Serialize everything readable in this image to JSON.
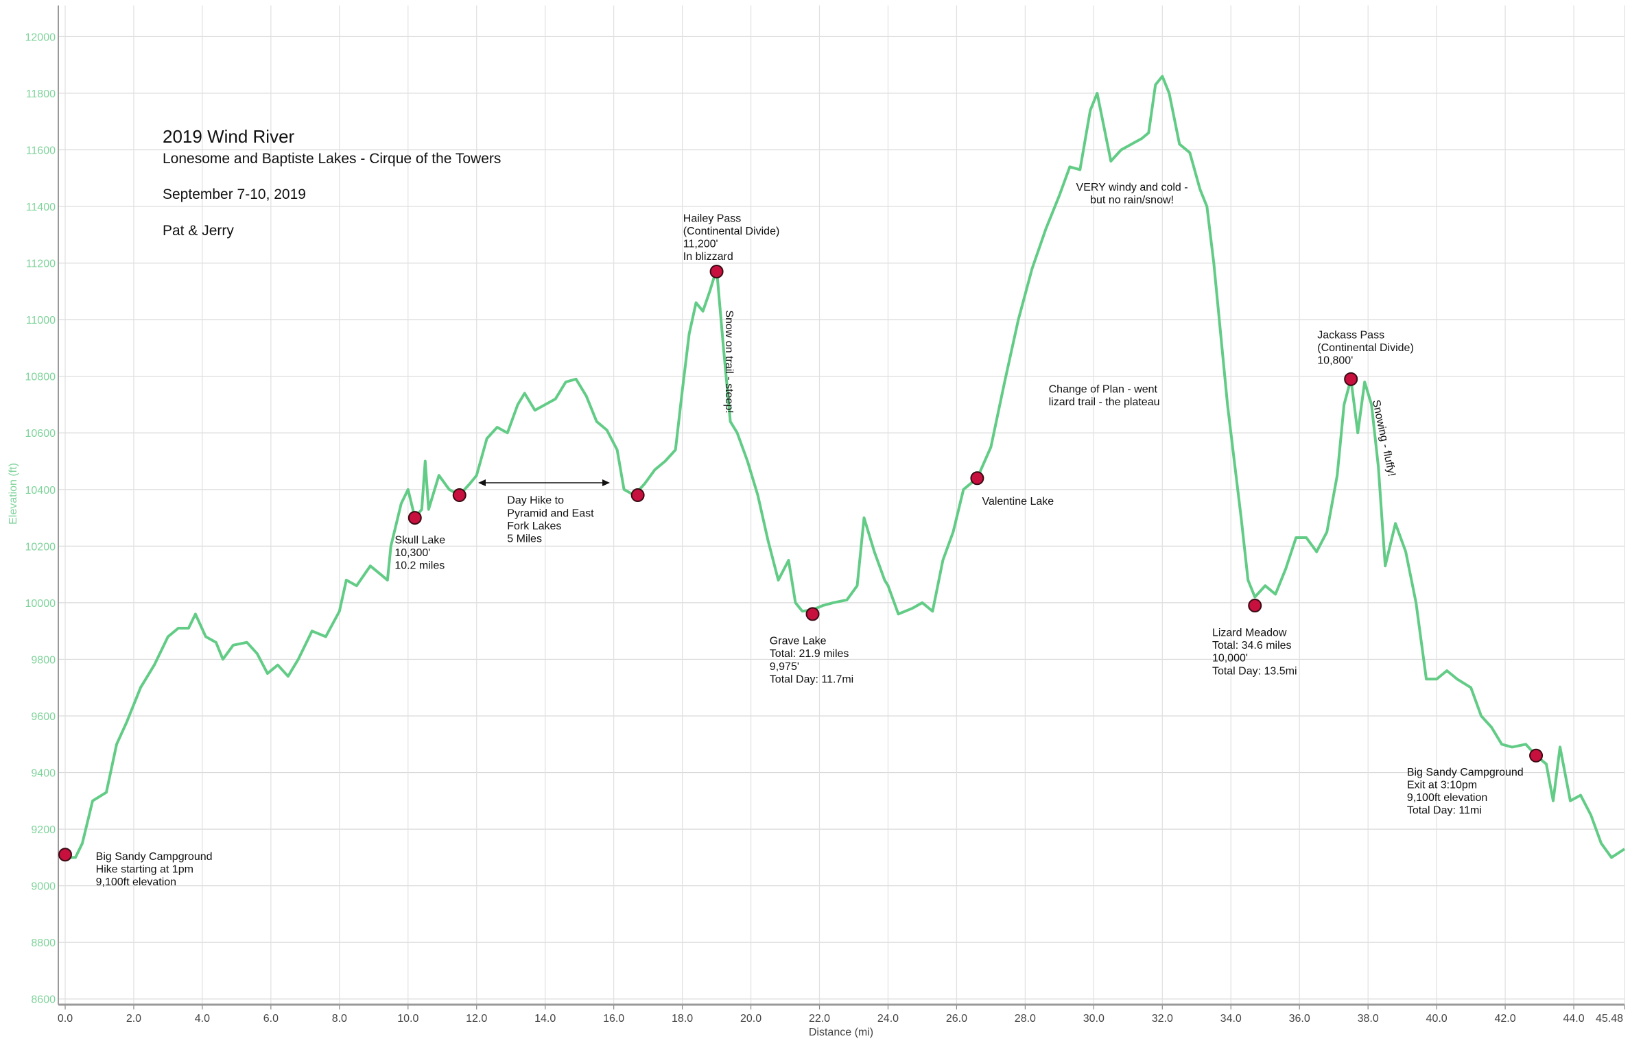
{
  "chart_data": {
    "type": "line",
    "title": "2019 Wind River",
    "subtitle": "Lonesome and Baptiste Lakes - Cirque of the Towers",
    "date": "September 7-10, 2019",
    "authors": "Pat & Jerry",
    "x_label": "Distance (mi)",
    "y_label": "Elevation (ft)",
    "color": "#62cc86",
    "grid": true,
    "xlim": [
      -0.2,
      45.48
    ],
    "ylim": [
      8580,
      12110
    ],
    "xticks": [
      {
        "value": 0,
        "label": "0.0"
      },
      {
        "value": 2,
        "label": "2.0"
      },
      {
        "value": 4,
        "label": "4.0"
      },
      {
        "value": 6,
        "label": "6.0"
      },
      {
        "value": 8,
        "label": "8.0"
      },
      {
        "value": 10,
        "label": "10.0"
      },
      {
        "value": 12,
        "label": "12.0"
      },
      {
        "value": 14,
        "label": "14.0"
      },
      {
        "value": 16,
        "label": "16.0"
      },
      {
        "value": 18,
        "label": "18.0"
      },
      {
        "value": 20,
        "label": "20.0"
      },
      {
        "value": 22,
        "label": "22.0"
      },
      {
        "value": 24,
        "label": "24.0"
      },
      {
        "value": 26,
        "label": "26.0"
      },
      {
        "value": 28,
        "label": "28.0"
      },
      {
        "value": 30,
        "label": "30.0"
      },
      {
        "value": 32,
        "label": "32.0"
      },
      {
        "value": 34,
        "label": "34.0"
      },
      {
        "value": 36,
        "label": "36.0"
      },
      {
        "value": 38,
        "label": "38.0"
      },
      {
        "value": 40,
        "label": "40.0"
      },
      {
        "value": 42,
        "label": "42.0"
      },
      {
        "value": 44,
        "label": "44.0"
      },
      45.48
    ],
    "yticks": [
      8600,
      8800,
      9000,
      9200,
      9400,
      9600,
      9800,
      10000,
      10200,
      10400,
      10600,
      10800,
      11000,
      11200,
      11400,
      11600,
      11800,
      12000
    ],
    "x": [
      0,
      0.3,
      0.5,
      0.8,
      1.2,
      1.5,
      1.8,
      2.2,
      2.6,
      3.0,
      3.3,
      3.6,
      3.8,
      4.1,
      4.4,
      4.6,
      4.9,
      5.3,
      5.6,
      5.9,
      6.2,
      6.5,
      6.8,
      7.2,
      7.6,
      8.0,
      8.2,
      8.5,
      8.9,
      9.2,
      9.4,
      9.5,
      9.8,
      10.0,
      10.2,
      10.4,
      10.5,
      10.6,
      10.9,
      11.2,
      11.5,
      11.8,
      12.0,
      12.3,
      12.6,
      12.9,
      13.2,
      13.4,
      13.7,
      14.0,
      14.3,
      14.6,
      14.9,
      15.2,
      15.5,
      15.8,
      16.1,
      16.3,
      16.6,
      16.9,
      17.2,
      17.5,
      17.8,
      18.0,
      18.2,
      18.4,
      18.6,
      18.8,
      19.0,
      19.2,
      19.4,
      19.6,
      19.9,
      20.2,
      20.5,
      20.8,
      21.1,
      21.3,
      21.5,
      21.8,
      22.1,
      22.4,
      22.8,
      23.1,
      23.3,
      23.6,
      23.9,
      24.0,
      24.3,
      24.7,
      25.0,
      25.3,
      25.6,
      25.9,
      26.2,
      26.6,
      27.0,
      27.4,
      27.8,
      28.2,
      28.6,
      29.0,
      29.3,
      29.6,
      29.9,
      30.1,
      30.3,
      30.5,
      30.8,
      31.1,
      31.4,
      31.6,
      31.8,
      32.0,
      32.2,
      32.5,
      32.8,
      33.1,
      33.3,
      33.5,
      33.7,
      33.9,
      34.1,
      34.3,
      34.5,
      34.7,
      35.0,
      35.3,
      35.6,
      35.9,
      36.2,
      36.5,
      36.8,
      37.1,
      37.3,
      37.5,
      37.7,
      37.9,
      38.1,
      38.3,
      38.5,
      38.8,
      39.1,
      39.4,
      39.7,
      40.0,
      40.3,
      40.6,
      41.0,
      41.3,
      41.6,
      41.9,
      42.2,
      42.6,
      42.9,
      43.2,
      43.4,
      43.6,
      43.9,
      44.2,
      44.5,
      44.8,
      45.1,
      45.48
    ],
    "values": [
      9100,
      9100,
      9150,
      9300,
      9330,
      9500,
      9580,
      9700,
      9780,
      9880,
      9910,
      9910,
      9960,
      9880,
      9860,
      9800,
      9850,
      9860,
      9820,
      9750,
      9780,
      9740,
      9800,
      9900,
      9880,
      9970,
      10080,
      10060,
      10130,
      10100,
      10080,
      10200,
      10350,
      10400,
      10300,
      10330,
      10500,
      10330,
      10450,
      10400,
      10380,
      10420,
      10450,
      10580,
      10620,
      10600,
      10700,
      10740,
      10680,
      10700,
      10720,
      10780,
      10790,
      10730,
      10640,
      10610,
      10540,
      10400,
      10380,
      10420,
      10470,
      10500,
      10540,
      10750,
      10950,
      11060,
      11030,
      11100,
      11180,
      10900,
      10640,
      10600,
      10500,
      10380,
      10220,
      10080,
      10150,
      10000,
      9970,
      9975,
      9990,
      10000,
      10010,
      10060,
      10300,
      10180,
      10080,
      10060,
      9960,
      9980,
      10000,
      9970,
      10150,
      10250,
      10400,
      10440,
      10550,
      10780,
      11000,
      11180,
      11320,
      11440,
      11540,
      11530,
      11740,
      11800,
      11680,
      11560,
      11600,
      11620,
      11640,
      11660,
      11830,
      11860,
      11800,
      11620,
      11590,
      11460,
      11400,
      11200,
      10950,
      10700,
      10500,
      10300,
      10080,
      10020,
      10060,
      10030,
      10120,
      10230,
      10230,
      10180,
      10250,
      10450,
      10700,
      10790,
      10600,
      10780,
      10700,
      10480,
      10130,
      10280,
      10180,
      10000,
      9730,
      9730,
      9760,
      9730,
      9700,
      9600,
      9560,
      9500,
      9490,
      9500,
      9460,
      9430,
      9300,
      9490,
      9300,
      9320,
      9250,
      9150,
      9100,
      9130
    ],
    "markers": {
      "color": "#c8103e",
      "x": [
        0,
        10.2,
        11.5,
        16.7,
        19.0,
        21.8,
        26.6,
        34.7,
        37.5,
        42.9
      ],
      "values": [
        9110,
        10300,
        10380,
        10380,
        11170,
        9960,
        10440,
        9990,
        10790,
        9460
      ]
    },
    "annotations": [
      [
        "Big Sandy Campground",
        "Hike starting at 1pm",
        "9,100ft elevation"
      ],
      [
        "Skull Lake",
        "10,300'",
        "10.2 miles"
      ],
      [
        "Day Hike to",
        "Pyramid and East",
        "Fork Lakes",
        "5 Miles"
      ],
      [
        "Hailey Pass",
        "(Continental Divide)",
        "11,200'",
        "In blizzard"
      ],
      [
        "Snow on trail - steep!"
      ],
      [
        "Grave Lake",
        "Total: 21.9 miles",
        "9,975'",
        "Total Day: 11.7mi"
      ],
      [
        "Valentine Lake"
      ],
      [
        "Change of Plan - went",
        "lizard trail - the plateau"
      ],
      [
        "VERY windy and cold -",
        "but no rain/snow!"
      ],
      [
        "Lizard Meadow",
        "Total: 34.6 miles",
        "10,000'",
        "Total Day: 13.5mi"
      ],
      [
        "Jackass Pass",
        "(Continental Divide)",
        "10,800'"
      ],
      [
        "Snowing - fluffy!"
      ],
      [
        "Big Sandy Campground",
        "Exit at 3:10pm",
        "9,100ft elevation",
        "Total Day: 11mi"
      ]
    ]
  }
}
